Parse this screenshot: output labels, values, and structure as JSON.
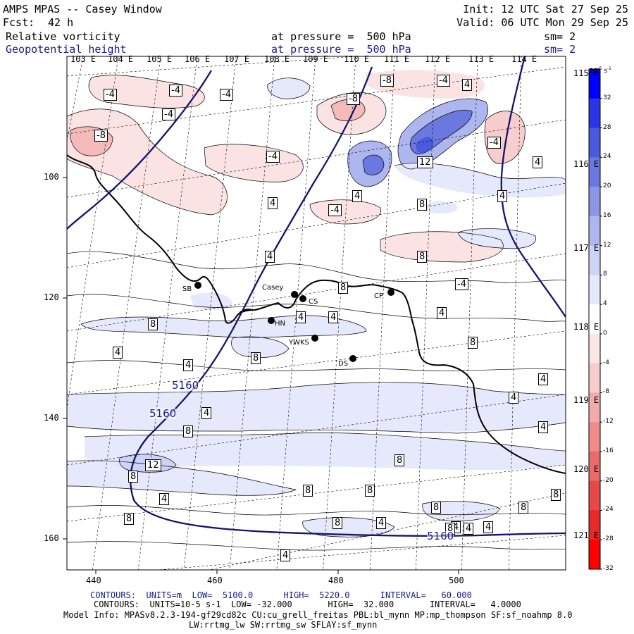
{
  "header": {
    "title": "AMPS MPAS -- Casey Window",
    "forecast_label": "Fcst:",
    "forecast_hours": "42 h",
    "init": "Init: 12 UTC Sat 27 Sep 25",
    "valid": "Valid: 06 UTC Mon 29 Sep 25",
    "field1_name": "Relative vorticity",
    "field1_level": "at pressure =  500 hPa",
    "field1_smooth": "sm= 2",
    "field2_name": "Geopotential height",
    "field2_level": "at pressure =  500 hPa",
    "field2_smooth": "sm= 2"
  },
  "axes": {
    "lon_top": [
      "103 E",
      "104 E",
      "105 E",
      "106 E",
      "107 E",
      "108 E",
      "109 E",
      "110 E",
      "111 E",
      "112 E",
      "113 E",
      "114 E"
    ],
    "lon_right": [
      "115 E",
      "116 E",
      "117 E",
      "118 E",
      "119 E",
      "120 E",
      "121 E"
    ],
    "y_ticks": [
      "100",
      "120",
      "140",
      "160"
    ],
    "x_ticks": [
      "440",
      "460",
      "480",
      "500"
    ]
  },
  "stations": [
    {
      "name": "SB"
    },
    {
      "name": "Casey"
    },
    {
      "name": "CS"
    },
    {
      "name": "HN"
    },
    {
      "name": "YWKS"
    },
    {
      "name": "DS"
    },
    {
      "name": "CP"
    }
  ],
  "height_labels": [
    "5160",
    "5160",
    "5160"
  ],
  "vort_labels": [
    "-4",
    "-4",
    "-4",
    "-4",
    "-8",
    "-4",
    "-4",
    "-8",
    "-8",
    "4",
    "12",
    "-4",
    "4",
    "4",
    "4",
    "-4",
    "4",
    "8",
    "4",
    "8",
    "-4",
    "4",
    "8",
    "4",
    "4",
    "8",
    "4",
    "8",
    "4",
    "8",
    "4",
    "4",
    "4",
    "8",
    "4",
    "8",
    "8",
    "8",
    "12",
    "8",
    "4",
    "8",
    "8",
    "8",
    "4",
    "8",
    "8",
    "4",
    "4",
    "4",
    "8",
    "4"
  ],
  "colorbar": {
    "unit_label": "10",
    "unit_exp": "-5",
    "unit_tail": "s",
    "unit_tail_exp": "-1",
    "ticks": [
      "32",
      "28",
      "24",
      "20",
      "16",
      "12",
      "8",
      "4",
      "0",
      "-4",
      "-8",
      "-12",
      "-16",
      "-20",
      "-24",
      "-28",
      "-32"
    ],
    "colors": [
      "#0000ff",
      "#2a35e6",
      "#4a5add",
      "#6a78e0",
      "#8b96e6",
      "#aeb6ef",
      "#cdd3f7",
      "#e6e9fb",
      "#ffffff",
      "#fbe6e6",
      "#f7cdcd",
      "#f3aaaa",
      "#ef8b8b",
      "#eb6a6a",
      "#e84848",
      "#e62a2a",
      "#ff0000"
    ]
  },
  "footer": {
    "contours1": "CONTOURS:  UNITS=m  LOW=  5100.0      HIGH=  5220.0      INTERVAL=   60.000",
    "contours2": "CONTOURS:  UNITS=10-5 s-1  LOW= -32.000       HIGH=  32.000       INTERVAL=   4.0000",
    "model_info": "Model Info: MPASv8.2.3-194-gf29cd82c CU:cu_grell_freitas PBL:bl_mynn MP:mp_thompson SF:sf_noahmp 8.0",
    "model_info2": "LW:rrtmg_lw SW:rrtmg_sw SFLAY:sf_mynn"
  }
}
